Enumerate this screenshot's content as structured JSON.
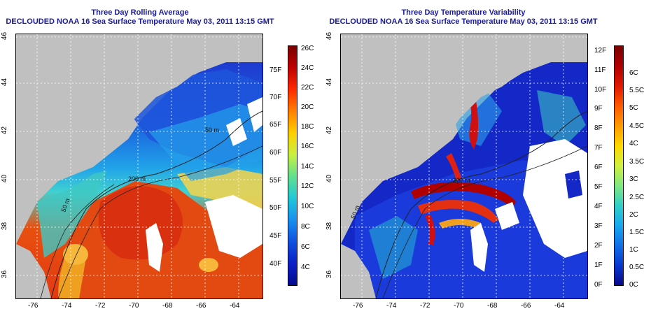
{
  "left_panel": {
    "title_line1": "Three Day Rolling Average",
    "title_line2": "DECLOUDED NOAA 16 Sea Surface Temperature May 03, 2011 13:15 GMT",
    "contour_labels": [
      "200 m",
      "50 m",
      "50 m"
    ],
    "colorbar": {
      "celsius": [
        "26C",
        "24C",
        "22C",
        "20C",
        "18C",
        "16C",
        "14C",
        "12C",
        "10C",
        "8C",
        "6C",
        "4C"
      ],
      "fahrenheit": [
        "75F",
        "70F",
        "65F",
        "60F",
        "55F",
        "50F",
        "45F",
        "40F"
      ]
    }
  },
  "right_panel": {
    "title_line1": "Three Day Temperature Variability",
    "title_line2": "DECLOUDED NOAA 16 Sea Surface Temperature May 03, 2011 13:15 GMT",
    "contour_labels": [
      "200 m",
      "50 m"
    ],
    "colorbar": {
      "celsius": [
        "6C",
        "5.5C",
        "5C",
        "4.5C",
        "4C",
        "3.5C",
        "3C",
        "2.5C",
        "2C",
        "1.5C",
        "1C",
        "0.5C",
        "0C"
      ],
      "fahrenheit": [
        "12F",
        "11F",
        "10F",
        "9F",
        "8F",
        "7F",
        "6F",
        "5F",
        "4F",
        "3F",
        "2F",
        "1F",
        "0F"
      ]
    }
  },
  "axes": {
    "x_ticks": [
      "-76",
      "-74",
      "-72",
      "-70",
      "-68",
      "-66",
      "-64"
    ],
    "y_ticks": [
      "46",
      "44",
      "42",
      "40",
      "38",
      "36"
    ]
  },
  "colors": {
    "title": "#1a1a9c",
    "land": "#c0c0c0",
    "cloud": "#ffffff"
  }
}
